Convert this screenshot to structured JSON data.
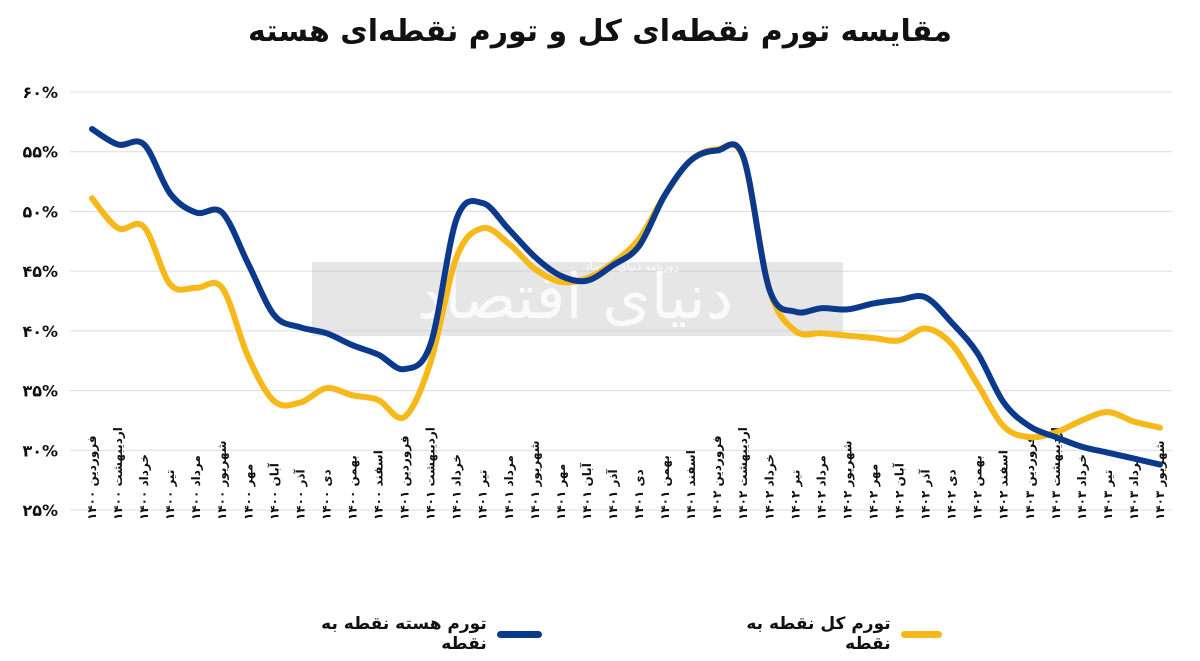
{
  "chart_data": {
    "type": "line",
    "title": "مقایسه تورم نقطه‌ای کل و تورم نقطه‌ای هسته",
    "xlabel": "",
    "ylabel": "",
    "ylim": [
      25,
      60
    ],
    "y_ticks": [
      "۶۰%",
      "۵۵%",
      "۵۰%",
      "۴۵%",
      "۴۰%",
      "۳۵%",
      "۳۰%",
      "۲۵%"
    ],
    "y_tick_values": [
      60,
      55,
      50,
      45,
      40,
      35,
      30,
      25
    ],
    "grid": true,
    "legend_position": "bottom",
    "categories": [
      "فروردین ۱۴۰۰",
      "اردیبهشت ۱۴۰۰",
      "خرداد ۱۴۰۰",
      "تیر ۱۴۰۰",
      "مرداد ۱۴۰۰",
      "شهریور ۱۴۰۰",
      "مهر ۱۴۰۰",
      "آبان ۱۴۰۰",
      "آذر ۱۴۰۰",
      "دی ۱۴۰۰",
      "بهمن ۱۴۰۰",
      "اسفند ۱۴۰۰",
      "فروردین ۱۴۰۱",
      "اردیبهشت ۱۴۰۱",
      "خرداد ۱۴۰۱",
      "تیر ۱۴۰۱",
      "مرداد ۱۴۰۱",
      "شهریور ۱۴۰۱",
      "مهر ۱۴۰۱",
      "آبان ۱۴۰۱",
      "آذر ۱۴۰۱",
      "دی ۱۴۰۱",
      "بهمن ۱۴۰۱",
      "اسفند ۱۴۰۱",
      "فروردین ۱۴۰۲",
      "اردیبهشت ۱۴۰۲",
      "خرداد ۱۴۰۲",
      "تیر ۱۴۰۲",
      "مرداد ۱۴۰۲",
      "شهریور ۱۴۰۲",
      "مهر ۱۴۰۲",
      "آبان ۱۴۰۲",
      "آذر ۱۴۰۲",
      "دی ۱۴۰۲",
      "بهمن ۱۴۰۲",
      "اسفند ۱۴۰۲",
      "فروردین ۱۴۰۳",
      "اردیبهشت ۱۴۰۳",
      "خرداد ۱۴۰۳",
      "تیر ۱۴۰۳",
      "مرداد ۱۴۰۳",
      "شهریور ۱۴۰۳"
    ],
    "series": [
      {
        "name": "تورم هسته نقطه به نقطه",
        "color": "#0b3a8c",
        "values": [
          56.9,
          55.6,
          55.6,
          51.5,
          49.9,
          49.9,
          45.6,
          41.3,
          40.3,
          39.8,
          38.8,
          38.0,
          36.8,
          38.9,
          49.4,
          50.7,
          48.5,
          46.2,
          44.6,
          44.2,
          45.5,
          47.1,
          51.4,
          54.3,
          55.1,
          54.6,
          43.5,
          41.6,
          41.9,
          41.8,
          42.3,
          42.6,
          42.8,
          40.7,
          38.1,
          34.0,
          32.0,
          31.1,
          30.3,
          29.8,
          29.3,
          28.8
        ]
      },
      {
        "name": "تورم کل نقطه به نقطه",
        "color": "#f7b91a",
        "values": [
          51.1,
          48.6,
          48.7,
          43.9,
          43.6,
          43.6,
          37.8,
          34.1,
          34.0,
          35.2,
          34.6,
          34.2,
          32.8,
          37.4,
          46.2,
          48.6,
          47.3,
          45.2,
          44.1,
          44.4,
          45.7,
          47.7,
          51.4,
          54.3,
          55.2,
          54.5,
          43.5,
          40.0,
          39.8,
          39.6,
          39.4,
          39.2,
          40.2,
          38.9,
          35.5,
          32.0,
          31.1,
          31.5,
          32.5,
          33.2,
          32.4,
          31.9
        ]
      }
    ]
  },
  "watermark": {
    "brand": "دنیای اقتصاد",
    "subtitle": "روزنامه دنیای اقتصاد"
  }
}
